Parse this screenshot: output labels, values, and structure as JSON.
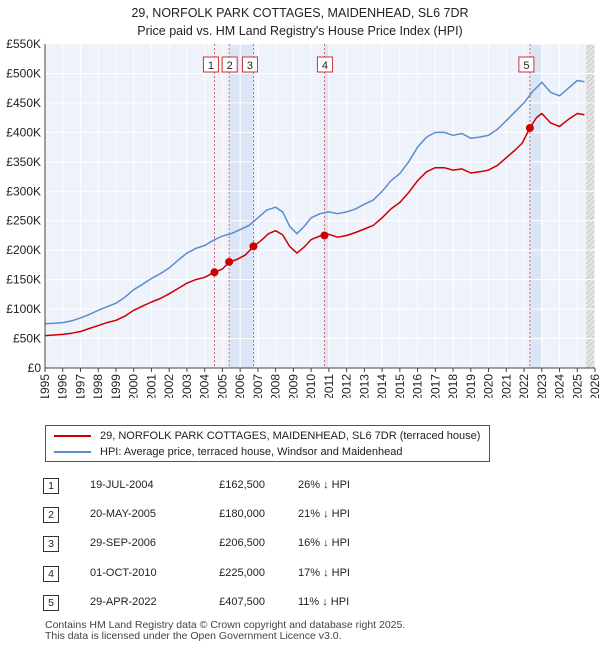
{
  "title": {
    "line1": "29, NORFOLK PARK COTTAGES, MAIDENHEAD, SL6 7DR",
    "line2": "Price paid vs. HM Land Registry's House Price Index (HPI)"
  },
  "chart_data": {
    "type": "line",
    "y_ticks": [
      {
        "v": 0,
        "label": "£0"
      },
      {
        "v": 50000,
        "label": "£50K"
      },
      {
        "v": 100000,
        "label": "£100K"
      },
      {
        "v": 150000,
        "label": "£150K"
      },
      {
        "v": 200000,
        "label": "£200K"
      },
      {
        "v": 250000,
        "label": "£250K"
      },
      {
        "v": 300000,
        "label": "£300K"
      },
      {
        "v": 350000,
        "label": "£350K"
      },
      {
        "v": 400000,
        "label": "£400K"
      },
      {
        "v": 450000,
        "label": "£450K"
      },
      {
        "v": 500000,
        "label": "£500K"
      },
      {
        "v": 550000,
        "label": "£550K"
      }
    ],
    "x_ticks": [
      "1995",
      "1996",
      "1997",
      "1998",
      "1999",
      "2000",
      "2001",
      "2002",
      "2003",
      "2004",
      "2005",
      "2006",
      "2007",
      "2008",
      "2009",
      "2010",
      "2011",
      "2012",
      "2013",
      "2014",
      "2015",
      "2016",
      "2017",
      "2018",
      "2019",
      "2020",
      "2021",
      "2022",
      "2023",
      "2024",
      "2025",
      "2026"
    ],
    "xlim": [
      1995,
      2026
    ],
    "ylim": [
      0,
      550000
    ],
    "legend_position": "below",
    "hpi_series": {
      "name": "HPI: Average price, terraced house, Windsor and Maidenhead",
      "color": "#5b8ccc",
      "points": [
        [
          1995.0,
          75000
        ],
        [
          1995.5,
          76000
        ],
        [
          1996.0,
          77000
        ],
        [
          1996.5,
          80000
        ],
        [
          1997.0,
          85000
        ],
        [
          1997.5,
          91000
        ],
        [
          1998.0,
          98000
        ],
        [
          1998.5,
          104000
        ],
        [
          1999.0,
          110000
        ],
        [
          1999.5,
          120000
        ],
        [
          2000.0,
          133000
        ],
        [
          2000.5,
          142000
        ],
        [
          2001.0,
          152000
        ],
        [
          2001.5,
          160000
        ],
        [
          2002.0,
          170000
        ],
        [
          2002.5,
          183000
        ],
        [
          2003.0,
          195000
        ],
        [
          2003.5,
          203000
        ],
        [
          2004.0,
          208000
        ],
        [
          2004.5,
          217000
        ],
        [
          2005.0,
          224000
        ],
        [
          2005.5,
          228000
        ],
        [
          2006.0,
          235000
        ],
        [
          2006.5,
          242000
        ],
        [
          2007.0,
          255000
        ],
        [
          2007.5,
          268000
        ],
        [
          2008.0,
          273000
        ],
        [
          2008.4,
          265000
        ],
        [
          2008.8,
          240000
        ],
        [
          2009.2,
          228000
        ],
        [
          2009.6,
          240000
        ],
        [
          2010.0,
          255000
        ],
        [
          2010.5,
          262000
        ],
        [
          2011.0,
          265000
        ],
        [
          2011.5,
          262000
        ],
        [
          2012.0,
          265000
        ],
        [
          2012.5,
          270000
        ],
        [
          2013.0,
          278000
        ],
        [
          2013.5,
          285000
        ],
        [
          2014.0,
          300000
        ],
        [
          2014.5,
          318000
        ],
        [
          2015.0,
          330000
        ],
        [
          2015.5,
          350000
        ],
        [
          2016.0,
          375000
        ],
        [
          2016.5,
          392000
        ],
        [
          2017.0,
          400000
        ],
        [
          2017.5,
          400000
        ],
        [
          2018.0,
          395000
        ],
        [
          2018.5,
          398000
        ],
        [
          2019.0,
          390000
        ],
        [
          2019.5,
          392000
        ],
        [
          2020.0,
          395000
        ],
        [
          2020.5,
          405000
        ],
        [
          2021.0,
          420000
        ],
        [
          2021.5,
          435000
        ],
        [
          2022.0,
          450000
        ],
        [
          2022.5,
          470000
        ],
        [
          2023.0,
          485000
        ],
        [
          2023.5,
          468000
        ],
        [
          2024.0,
          462000
        ],
        [
          2024.5,
          475000
        ],
        [
          2025.0,
          488000
        ],
        [
          2025.4,
          486000
        ]
      ]
    },
    "property_series": {
      "name": "29, NORFOLK PARK COTTAGES, MAIDENHEAD, SL6 7DR (terraced house)",
      "color": "#cc0000",
      "points": [
        [
          1995.0,
          55000
        ],
        [
          1995.5,
          56000
        ],
        [
          1996.0,
          57000
        ],
        [
          1996.5,
          59000
        ],
        [
          1997.0,
          62000
        ],
        [
          1997.5,
          67000
        ],
        [
          1998.0,
          72000
        ],
        [
          1998.5,
          77000
        ],
        [
          1999.0,
          81000
        ],
        [
          1999.5,
          88000
        ],
        [
          2000.0,
          98000
        ],
        [
          2000.5,
          105000
        ],
        [
          2001.0,
          112000
        ],
        [
          2001.5,
          118000
        ],
        [
          2002.0,
          126000
        ],
        [
          2002.5,
          135000
        ],
        [
          2003.0,
          144000
        ],
        [
          2003.5,
          150000
        ],
        [
          2004.0,
          154000
        ],
        [
          2004.55,
          162500
        ],
        [
          2005.0,
          168000
        ],
        [
          2005.38,
          180000
        ],
        [
          2005.8,
          184000
        ],
        [
          2006.3,
          192000
        ],
        [
          2006.75,
          206500
        ],
        [
          2007.2,
          217000
        ],
        [
          2007.6,
          228000
        ],
        [
          2008.0,
          233000
        ],
        [
          2008.4,
          226000
        ],
        [
          2008.8,
          206000
        ],
        [
          2009.2,
          195000
        ],
        [
          2009.6,
          205000
        ],
        [
          2010.0,
          218000
        ],
        [
          2010.5,
          224000
        ],
        [
          2010.75,
          225000
        ],
        [
          2011.0,
          227000
        ],
        [
          2011.5,
          222000
        ],
        [
          2012.0,
          225000
        ],
        [
          2012.5,
          230000
        ],
        [
          2013.0,
          236000
        ],
        [
          2013.5,
          242000
        ],
        [
          2014.0,
          255000
        ],
        [
          2014.5,
          270000
        ],
        [
          2015.0,
          281000
        ],
        [
          2015.5,
          298000
        ],
        [
          2016.0,
          318000
        ],
        [
          2016.5,
          333000
        ],
        [
          2017.0,
          340000
        ],
        [
          2017.5,
          340000
        ],
        [
          2018.0,
          336000
        ],
        [
          2018.5,
          338000
        ],
        [
          2019.0,
          331000
        ],
        [
          2019.5,
          333000
        ],
        [
          2020.0,
          336000
        ],
        [
          2020.5,
          344000
        ],
        [
          2021.0,
          357000
        ],
        [
          2021.5,
          370000
        ],
        [
          2021.9,
          382000
        ],
        [
          2022.33,
          407500
        ],
        [
          2022.7,
          425000
        ],
        [
          2023.0,
          432000
        ],
        [
          2023.5,
          416000
        ],
        [
          2024.0,
          410000
        ],
        [
          2024.5,
          422000
        ],
        [
          2025.0,
          432000
        ],
        [
          2025.4,
          430000
        ]
      ]
    },
    "sales": [
      {
        "id": "1",
        "x": 2004.55,
        "y": 162500
      },
      {
        "id": "2",
        "x": 2005.38,
        "y": 180000
      },
      {
        "id": "3",
        "x": 2006.75,
        "y": 206500
      },
      {
        "id": "4",
        "x": 2010.75,
        "y": 225000
      },
      {
        "id": "5",
        "x": 2022.33,
        "y": 407500
      }
    ],
    "shaded_ranges": [
      [
        2005.38,
        2006.75
      ],
      [
        2010.75,
        2011.0
      ],
      [
        2022.33,
        2023.0
      ]
    ],
    "projection_start": 2025.5
  },
  "legend": {
    "property_label": "29, NORFOLK PARK COTTAGES, MAIDENHEAD, SL6 7DR (terraced house)",
    "hpi_label": "HPI: Average price, terraced house, Windsor and Maidenhead",
    "property_color": "#cc0000",
    "hpi_color": "#5b8ccc"
  },
  "transactions": [
    {
      "num": "1",
      "date": "19-JUL-2004",
      "price": "£162,500",
      "pct": "26% ↓ HPI"
    },
    {
      "num": "2",
      "date": "20-MAY-2005",
      "price": "£180,000",
      "pct": "21% ↓ HPI"
    },
    {
      "num": "3",
      "date": "29-SEP-2006",
      "price": "£206,500",
      "pct": "16% ↓ HPI"
    },
    {
      "num": "4",
      "date": "01-OCT-2010",
      "price": "£225,000",
      "pct": "17% ↓ HPI"
    },
    {
      "num": "5",
      "date": "29-APR-2022",
      "price": "£407,500",
      "pct": "11% ↓ HPI"
    }
  ],
  "footer": {
    "line1": "Contains HM Land Registry data © Crown copyright and database right 2025.",
    "line2": "This data is licensed under the Open Government Licence v3.0."
  }
}
